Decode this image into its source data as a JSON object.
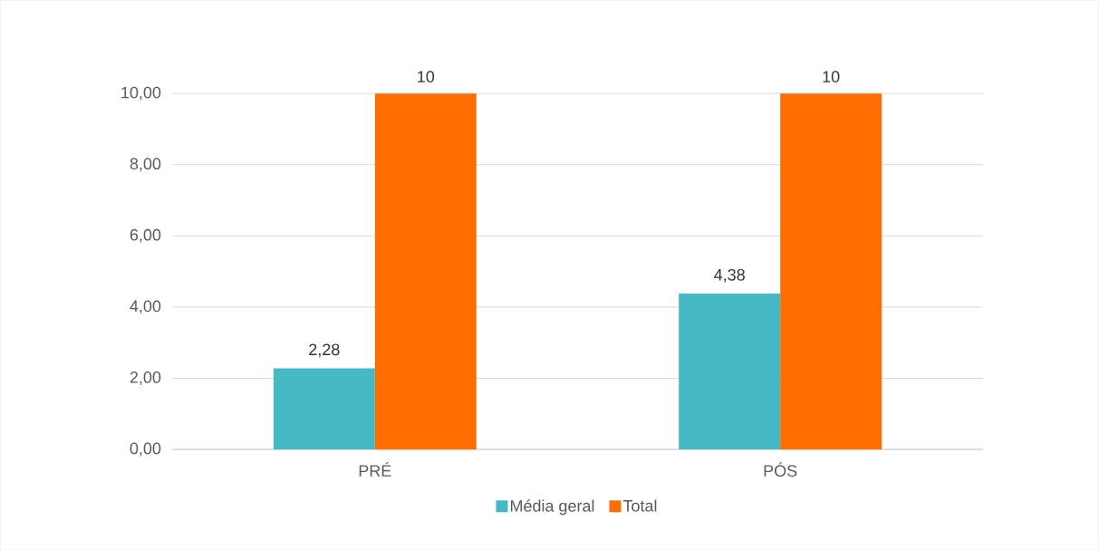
{
  "chart_data": {
    "type": "bar",
    "categories": [
      "PRÉ",
      "PÓS"
    ],
    "series": [
      {
        "name": "Média geral",
        "color": "#45bac5",
        "values": [
          2.28,
          4.38
        ],
        "value_labels": [
          "2,28",
          "4,38"
        ]
      },
      {
        "name": "Total",
        "color": "#ff6d00",
        "values": [
          10,
          10
        ],
        "value_labels": [
          "10",
          "10"
        ]
      }
    ],
    "ylim": [
      0,
      10
    ],
    "yticks": [
      {
        "value": 0,
        "label": "0,00"
      },
      {
        "value": 2,
        "label": "2,00"
      },
      {
        "value": 4,
        "label": "4,00"
      },
      {
        "value": 6,
        "label": "6,00"
      },
      {
        "value": 8,
        "label": "8,00"
      },
      {
        "value": 10,
        "label": "10,00"
      }
    ],
    "grid": "y",
    "legend": "bottom"
  }
}
